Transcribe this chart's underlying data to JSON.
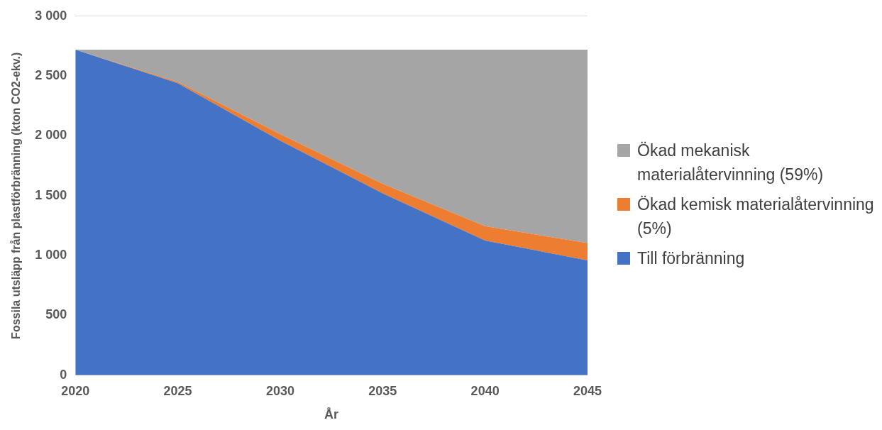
{
  "chart_data": {
    "type": "area",
    "stacked": true,
    "xlabel": "År",
    "ylabel": "Fossila utsläpp från plastförbränning (kton CO2-ekv.)",
    "categories": [
      "2020",
      "2025",
      "2030",
      "2035",
      "2040",
      "2045"
    ],
    "series": [
      {
        "name": "Till förbränning",
        "color": "#4472c4",
        "values": [
          2720,
          2440,
          1960,
          1520,
          1125,
          960
        ]
      },
      {
        "name": "Ökad kemisk materialåtervinning (5%)",
        "color": "#ed7d31",
        "values": [
          0,
          10,
          55,
          80,
          120,
          145
        ]
      },
      {
        "name": "Ökad mekanisk materialåtervinning (59%)",
        "color": "#a5a5a5",
        "values": [
          0,
          270,
          705,
          1120,
          1475,
          1615
        ]
      }
    ],
    "ylim": [
      0,
      3000
    ],
    "yticks": [
      {
        "value": 0,
        "label": "0"
      },
      {
        "value": 500,
        "label": "500"
      },
      {
        "value": 1000,
        "label": "1 000"
      },
      {
        "value": 1500,
        "label": "1 500"
      },
      {
        "value": 2000,
        "label": "2 000"
      },
      {
        "value": 2500,
        "label": "2 500"
      },
      {
        "value": 3000,
        "label": "3 000"
      }
    ],
    "grid": "y",
    "legend": "right"
  }
}
